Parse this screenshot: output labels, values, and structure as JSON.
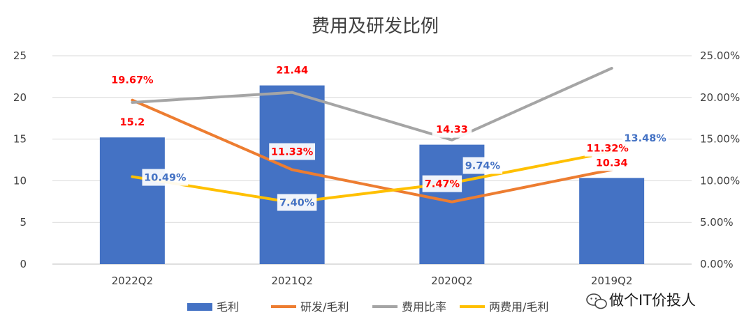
{
  "chart_data": {
    "type": "bar",
    "title": "费用及研发比例",
    "categories": [
      "2022Q2",
      "2021Q2",
      "2020Q2",
      "2019Q2"
    ],
    "y_left": {
      "ylim": [
        0,
        25
      ],
      "ticks": [
        0,
        5,
        10,
        15,
        20,
        25
      ]
    },
    "y_right": {
      "ylim": [
        0,
        0.25
      ],
      "ticks": [
        "0.00%",
        "5.00%",
        "10.00%",
        "15.00%",
        "20.00%",
        "25.00%"
      ]
    },
    "grid": true,
    "legend_position": "bottom",
    "series": [
      {
        "name": "毛利",
        "type": "bar",
        "axis": "left",
        "color": "#4472C4",
        "values": [
          15.2,
          21.44,
          14.33,
          10.34
        ],
        "labels": [
          "15.2",
          "21.44",
          "14.33",
          "10.34"
        ],
        "label_color": "#FF0000"
      },
      {
        "name": "研发/毛利",
        "type": "line",
        "axis": "right",
        "color": "#ED7D31",
        "values": [
          0.1967,
          0.1133,
          0.0747,
          0.1132
        ],
        "labels": [
          "19.67%",
          "11.33%",
          "7.47%",
          "11.32%"
        ],
        "label_color": "#FF0000"
      },
      {
        "name": "费用比率",
        "type": "line",
        "axis": "right",
        "color": "#A5A5A5",
        "values": [
          0.194,
          0.206,
          0.149,
          0.235
        ],
        "labels": [],
        "label_color": ""
      },
      {
        "name": "两费用/毛利",
        "type": "line",
        "axis": "right",
        "color": "#FFC000",
        "values": [
          0.1049,
          0.074,
          0.0974,
          0.1348
        ],
        "labels": [
          "10.49%",
          "7.40%",
          "9.74%",
          "13.48%"
        ],
        "label_color": "#4472C4"
      }
    ]
  },
  "watermark": {
    "text": "做个IT价投人",
    "icon": "wechat-icon"
  }
}
